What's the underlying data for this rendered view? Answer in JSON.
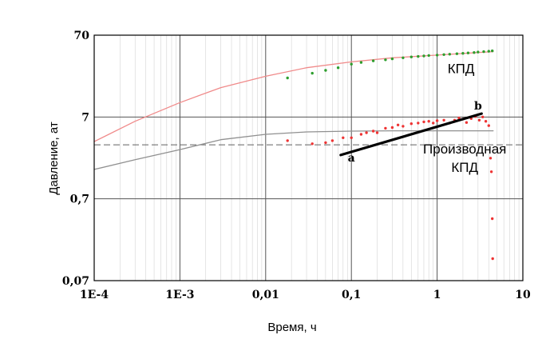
{
  "chart_data": {
    "type": "scatter",
    "title": "",
    "xlabel": "Время, ч",
    "ylabel": "Давление, ат",
    "x_scale": "log",
    "y_scale": "log",
    "xlim": [
      0.0001,
      10
    ],
    "ylim": [
      0.07,
      70
    ],
    "grid": true,
    "x_ticks": [
      {
        "value": 0.0001,
        "label": "1E-4"
      },
      {
        "value": 0.001,
        "label": "1E-3"
      },
      {
        "value": 0.01,
        "label": "0,01"
      },
      {
        "value": 0.1,
        "label": "0,1"
      },
      {
        "value": 1,
        "label": "1"
      },
      {
        "value": 10,
        "label": "10"
      }
    ],
    "y_ticks": [
      {
        "value": 0.07,
        "label": "0,07"
      },
      {
        "value": 0.7,
        "label": "0,7"
      },
      {
        "value": 7,
        "label": "7"
      },
      {
        "value": 70,
        "label": "70"
      }
    ],
    "reference_line": {
      "y": 3.2
    },
    "series": [
      {
        "kind": "line",
        "color": "#f08a8a",
        "x": [
          0.0001,
          0.0003,
          0.001,
          0.003,
          0.01,
          0.03,
          0.1,
          0.3,
          1,
          3,
          4.5
        ],
        "y": [
          3.5,
          6.2,
          10.5,
          16,
          22,
          28,
          33,
          37,
          40,
          43,
          44
        ]
      },
      {
        "kind": "line",
        "color": "#909090",
        "x": [
          0.0001,
          0.0003,
          0.001,
          0.003,
          0.01,
          0.03,
          0.1,
          0.3,
          1,
          3,
          4.5
        ],
        "y": [
          1.6,
          2.1,
          2.8,
          3.7,
          4.3,
          4.6,
          4.7,
          4.75,
          4.75,
          4.75,
          4.75
        ]
      },
      {
        "kind": "scatter",
        "color": "#2e9e2e",
        "x": [
          0.018,
          0.035,
          0.05,
          0.07,
          0.1,
          0.13,
          0.18,
          0.25,
          0.3,
          0.4,
          0.5,
          0.6,
          0.7,
          0.8,
          1.0,
          1.2,
          1.4,
          1.7,
          2.0,
          2.3,
          2.7,
          3.0,
          3.5,
          4.0,
          4.4
        ],
        "y": [
          21,
          24,
          26,
          28,
          31,
          32.5,
          34,
          35,
          36,
          37,
          38,
          38.5,
          39,
          39.5,
          40,
          40.5,
          41,
          41.5,
          42,
          42.5,
          43,
          43.5,
          44,
          44.5,
          45
        ]
      },
      {
        "kind": "scatter",
        "color": "#ee3333",
        "x": [
          0.018,
          0.035,
          0.05,
          0.06,
          0.08,
          0.1,
          0.13,
          0.15,
          0.18,
          0.2,
          0.25,
          0.3,
          0.35,
          0.4,
          0.5,
          0.6,
          0.7,
          0.8,
          0.9,
          1.0,
          1.2,
          1.4,
          1.6,
          1.8,
          2.0,
          2.2,
          2.5,
          2.8,
          3.1,
          3.4,
          3.7,
          4.0,
          4.2,
          4.3,
          4.4,
          4.45
        ],
        "y": [
          3.6,
          3.3,
          3.4,
          3.6,
          3.9,
          3.9,
          4.3,
          4.5,
          4.7,
          4.5,
          5.1,
          5.2,
          5.6,
          5.4,
          5.8,
          5.9,
          6.1,
          6.2,
          5.9,
          6.3,
          6.4,
          5.9,
          6.4,
          6.8,
          6.6,
          6.0,
          6.7,
          7.1,
          6.4,
          7.0,
          6.2,
          5.5,
          2.2,
          1.5,
          0.4,
          0.13
        ]
      },
      {
        "kind": "line",
        "color": "#000000",
        "x": [
          0.075,
          3.3
        ],
        "y": [
          2.4,
          7.7
        ]
      }
    ],
    "annotations": [
      {
        "text": "КПД",
        "x": 1.9,
        "y": 24
      },
      {
        "text": "Производная",
        "x": 2.1,
        "y": 2.5
      },
      {
        "text": "КПД",
        "x": 2.1,
        "y": 1.5
      },
      {
        "text": "a",
        "x": 0.1,
        "y": 2.0
      },
      {
        "text": "b",
        "x": 3.0,
        "y": 8.6
      }
    ]
  }
}
